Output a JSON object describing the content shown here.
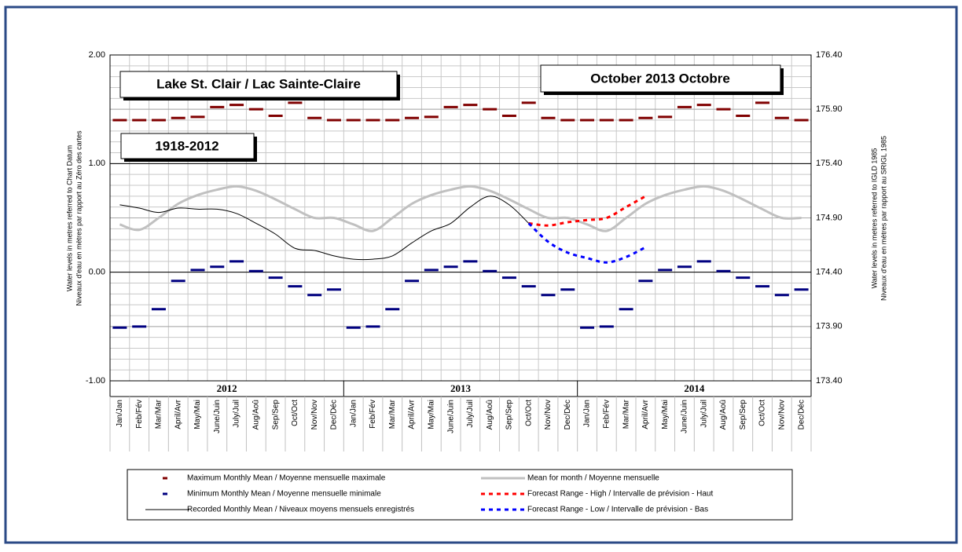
{
  "chart_data": {
    "type": "line",
    "title": "Lake St. Clair / Lac Sainte-Claire",
    "subtitle": "October 2013 Octobre",
    "period": "1918-2012",
    "y_label": [
      "Water levels in metres referred to Chart Datum",
      "Niveaux d'eau en mètres par rapport au Zéro des cartes"
    ],
    "y2_label": [
      "Water levels in metres referred to IGLD 1985",
      "Niveaux d'eau en mètres par rapport au SRIGL 1985"
    ],
    "years": [
      "2012",
      "2013",
      "2014"
    ],
    "categories": [
      "Jan/Jan",
      "Feb/Fév",
      "Mar/Mar",
      "April/Avr",
      "May/Mai",
      "June/Juin",
      "July/Juil",
      "Aug/Aoû",
      "Sep/Sep",
      "Oct/Oct",
      "Nov/Nov",
      "Dec/Déc",
      "Jan/Jan",
      "Feb/Fév",
      "Mar/Mar",
      "April/Avr",
      "May/Mai",
      "June/Juin",
      "July/Juil",
      "Aug/Aoû",
      "Sep/Sep",
      "Oct/Oct",
      "Nov/Nov",
      "Dec/Déc",
      "Jan/Jan",
      "Feb/Fév",
      "Mar/Mar",
      "April/Avr",
      "May/Mai",
      "June/Juin",
      "July/Juil",
      "Aug/Aoû",
      "Sep/Sep",
      "Oct/Oct",
      "Nov/Nov",
      "Dec/Déc"
    ],
    "ylim": [
      -1,
      2
    ],
    "yticks": [
      {
        "value": -1,
        "label": "-1.00"
      },
      {
        "value": 0,
        "label": "0.00"
      },
      {
        "value": 1,
        "label": "1.00"
      },
      {
        "value": 2,
        "label": "2.00"
      }
    ],
    "y2lim": [
      173.4,
      176.4
    ],
    "y2ticks": [
      {
        "value": 173.4,
        "label": "173.40"
      },
      {
        "value": 173.9,
        "label": "173.90"
      },
      {
        "value": 174.4,
        "label": "174.40"
      },
      {
        "value": 174.9,
        "label": "174.90"
      },
      {
        "value": 175.4,
        "label": "175.40"
      },
      {
        "value": 175.9,
        "label": "175.90"
      },
      {
        "value": 176.4,
        "label": "176.40"
      }
    ],
    "grid": true,
    "legend": "bottom",
    "series": [
      {
        "name": "Maximum Monthly Mean / Moyenne mensuelle maximale",
        "color": "#800000",
        "style": "marker",
        "values": [
          1.4,
          1.4,
          1.4,
          1.42,
          1.43,
          1.52,
          1.54,
          1.5,
          1.44,
          1.56,
          1.42,
          1.4,
          1.4,
          1.4,
          1.4,
          1.42,
          1.43,
          1.52,
          1.54,
          1.5,
          1.44,
          1.56,
          1.42,
          1.4,
          1.4,
          1.4,
          1.4,
          1.42,
          1.43,
          1.52,
          1.54,
          1.5,
          1.44,
          1.56,
          1.42,
          1.4
        ]
      },
      {
        "name": "Mean for month / Moyenne mensuelle",
        "color": "#c0c0c0",
        "style": "line",
        "width": 3,
        "values": [
          0.44,
          0.39,
          0.5,
          0.63,
          0.71,
          0.76,
          0.79,
          0.75,
          0.67,
          0.58,
          0.5,
          0.5,
          0.44,
          0.38,
          0.5,
          0.63,
          0.71,
          0.76,
          0.79,
          0.75,
          0.67,
          0.58,
          0.5,
          0.5,
          0.44,
          0.38,
          0.5,
          0.63,
          0.71,
          0.76,
          0.79,
          0.75,
          0.67,
          0.58,
          0.5,
          0.5
        ]
      },
      {
        "name": "Minimum Monthly Mean / Moyenne mensuelle minimale",
        "color": "#000080",
        "style": "marker",
        "values": [
          -0.51,
          -0.5,
          -0.34,
          -0.08,
          0.02,
          0.05,
          0.1,
          0.01,
          -0.05,
          -0.13,
          -0.21,
          -0.16,
          -0.51,
          -0.5,
          -0.34,
          -0.08,
          0.02,
          0.05,
          0.1,
          0.01,
          -0.05,
          -0.13,
          -0.21,
          -0.16,
          -0.51,
          -0.5,
          -0.34,
          -0.08,
          0.02,
          0.05,
          0.1,
          0.01,
          -0.05,
          -0.13,
          -0.21,
          -0.16
        ]
      },
      {
        "name": "Forecast Range - High / Intervalle de prévision - Haut",
        "color": "#ff0000",
        "style": "dashed",
        "width": 3,
        "values": [
          null,
          null,
          null,
          null,
          null,
          null,
          null,
          null,
          null,
          null,
          null,
          null,
          null,
          null,
          null,
          null,
          null,
          null,
          null,
          null,
          null,
          0.45,
          0.43,
          0.46,
          0.48,
          0.5,
          0.6,
          0.7,
          null,
          null,
          null,
          null,
          null,
          null,
          null,
          null
        ]
      },
      {
        "name": "Recorded Monthly Mean / Niveaux moyens mensuels enregistrés",
        "color": "#000000",
        "style": "line",
        "width": 1,
        "values": [
          0.62,
          0.59,
          0.55,
          0.59,
          0.58,
          0.58,
          0.54,
          0.45,
          0.35,
          0.22,
          0.2,
          0.15,
          0.12,
          0.12,
          0.15,
          0.27,
          0.38,
          0.45,
          0.6,
          0.7,
          0.62,
          0.45,
          null,
          null,
          null,
          null,
          null,
          null,
          null,
          null,
          null,
          null,
          null,
          null,
          null,
          null
        ]
      },
      {
        "name": "Forecast Range - Low / Intervalle de prévision - Bas",
        "color": "#0000ff",
        "style": "dashed",
        "width": 3,
        "values": [
          null,
          null,
          null,
          null,
          null,
          null,
          null,
          null,
          null,
          null,
          null,
          null,
          null,
          null,
          null,
          null,
          null,
          null,
          null,
          null,
          null,
          0.45,
          0.28,
          0.18,
          0.13,
          0.09,
          0.14,
          0.23,
          null,
          null,
          null,
          null,
          null,
          null,
          null,
          null
        ]
      }
    ]
  }
}
